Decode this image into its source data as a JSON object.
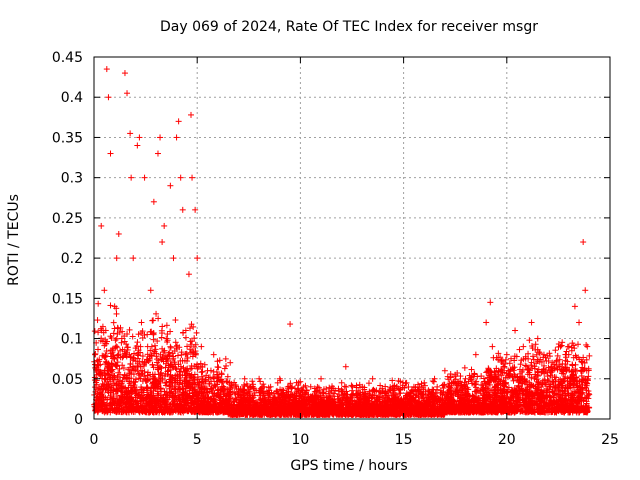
{
  "chart_data": {
    "type": "scatter",
    "title": "Day 069 of 2024, Rate Of TEC Index for receiver msgr",
    "xlabel": "GPS time / hours",
    "ylabel": "ROTI / TECUs",
    "xlim": [
      0,
      25
    ],
    "ylim": [
      0,
      0.45
    ],
    "grid": true,
    "marker": "+",
    "marker_color": "#ff0000",
    "grid_color": "#a0a0a0",
    "xticks": [
      0,
      5,
      10,
      15,
      20,
      25
    ],
    "xtick_labels": [
      "0",
      "5",
      "10",
      "15",
      "20",
      "25"
    ],
    "yticks": [
      0,
      0.05,
      0.1,
      0.15,
      0.2,
      0.25,
      0.3,
      0.35,
      0.4,
      0.45
    ],
    "ytick_labels": [
      "0",
      "0.05",
      "0.1",
      "0.15",
      "0.2",
      "0.25",
      "0.3",
      "0.35",
      "0.4",
      "0.45"
    ],
    "series": [
      {
        "name": "ROTI",
        "x": [
          0.05,
          0.2,
          0.35,
          0.5,
          0.62,
          0.7,
          0.8,
          1.0,
          1.1,
          1.2,
          1.35,
          1.5,
          1.6,
          1.75,
          1.8,
          1.9,
          2.1,
          2.2,
          2.3,
          2.45,
          2.6,
          2.75,
          2.9,
          3.1,
          3.2,
          3.3,
          3.4,
          3.5,
          3.6,
          3.7,
          3.85,
          4.0,
          4.1,
          4.2,
          4.3,
          4.45,
          4.6,
          4.7,
          4.75,
          4.9,
          5.0,
          5.2,
          5.5,
          5.8,
          6.2,
          6.6,
          7.0,
          7.3,
          7.6,
          8.0,
          8.5,
          9.0,
          9.5,
          9.6,
          10.0,
          10.5,
          11.0,
          11.5,
          12.0,
          12.2,
          12.5,
          13.0,
          13.5,
          14.0,
          14.5,
          15.0,
          15.5,
          16.0,
          16.5,
          17.0,
          17.5,
          18.0,
          18.5,
          19.0,
          19.2,
          19.3,
          19.6,
          20.0,
          20.4,
          20.8,
          21.2,
          21.5,
          21.8,
          22.2,
          22.6,
          23.0,
          23.3,
          23.5,
          23.7,
          23.8,
          23.9
        ],
        "y": [
          0.08,
          0.06,
          0.24,
          0.16,
          0.435,
          0.4,
          0.33,
          0.14,
          0.2,
          0.23,
          0.1,
          0.43,
          0.405,
          0.355,
          0.3,
          0.2,
          0.34,
          0.35,
          0.12,
          0.3,
          0.09,
          0.16,
          0.27,
          0.33,
          0.35,
          0.22,
          0.24,
          0.1,
          0.06,
          0.29,
          0.2,
          0.35,
          0.37,
          0.3,
          0.26,
          0.11,
          0.18,
          0.378,
          0.3,
          0.26,
          0.2,
          0.09,
          0.06,
          0.08,
          0.04,
          0.07,
          0.03,
          0.05,
          0.04,
          0.05,
          0.03,
          0.05,
          0.118,
          0.04,
          0.03,
          0.04,
          0.05,
          0.035,
          0.045,
          0.065,
          0.03,
          0.04,
          0.05,
          0.035,
          0.03,
          0.025,
          0.04,
          0.045,
          0.05,
          0.06,
          0.055,
          0.05,
          0.08,
          0.12,
          0.145,
          0.09,
          0.06,
          0.08,
          0.11,
          0.09,
          0.12,
          0.1,
          0.08,
          0.07,
          0.09,
          0.08,
          0.14,
          0.12,
          0.22,
          0.16,
          0.09
        ],
        "background_cloud": [
          {
            "x_from": 0,
            "x_to": 1.5,
            "y_low": 0.008,
            "y_high": 0.15
          },
          {
            "x_from": 1.5,
            "x_to": 3.0,
            "y_low": 0.008,
            "y_high": 0.13
          },
          {
            "x_from": 3.0,
            "x_to": 5.0,
            "y_low": 0.008,
            "y_high": 0.14
          },
          {
            "x_from": 5.0,
            "x_to": 6.5,
            "y_low": 0.008,
            "y_high": 0.08
          },
          {
            "x_from": 6.5,
            "x_to": 10.0,
            "y_low": 0.005,
            "y_high": 0.05
          },
          {
            "x_from": 10.0,
            "x_to": 14.0,
            "y_low": 0.005,
            "y_high": 0.045
          },
          {
            "x_from": 14.0,
            "x_to": 17.0,
            "y_low": 0.005,
            "y_high": 0.05
          },
          {
            "x_from": 17.0,
            "x_to": 19.0,
            "y_low": 0.008,
            "y_high": 0.065
          },
          {
            "x_from": 19.0,
            "x_to": 21.0,
            "y_low": 0.008,
            "y_high": 0.09
          },
          {
            "x_from": 21.0,
            "x_to": 22.5,
            "y_low": 0.008,
            "y_high": 0.1
          },
          {
            "x_from": 22.5,
            "x_to": 24.0,
            "y_low": 0.008,
            "y_high": 0.11
          }
        ]
      }
    ]
  }
}
